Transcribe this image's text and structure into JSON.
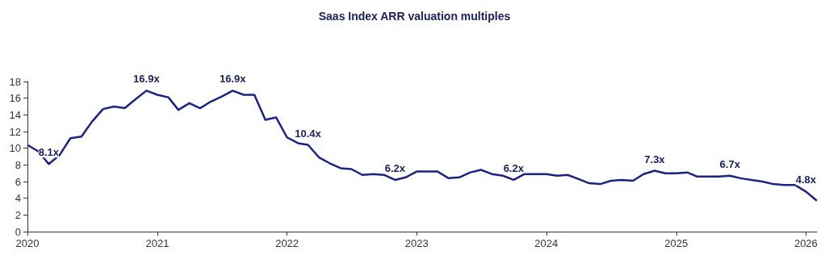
{
  "chart_data": {
    "type": "line",
    "title": "Saas Index ARR valuation multiples",
    "x": [
      "2020-01",
      "2020-02",
      "2020-03",
      "2020-04",
      "2020-05",
      "2020-06",
      "2020-07",
      "2020-08",
      "2020-09",
      "2020-10",
      "2020-11",
      "2020-12",
      "2021-01",
      "2021-02",
      "2021-03",
      "2021-04",
      "2021-05",
      "2021-06",
      "2021-07",
      "2021-08",
      "2021-09",
      "2021-10",
      "2021-11",
      "2021-12",
      "2022-01",
      "2022-02",
      "2022-03",
      "2022-04",
      "2022-05",
      "2022-06",
      "2022-07",
      "2022-08",
      "2022-09",
      "2022-10",
      "2022-11",
      "2022-12",
      "2023-01",
      "2023-02",
      "2023-03",
      "2023-04",
      "2023-05",
      "2023-06",
      "2023-07",
      "2023-08",
      "2023-09",
      "2023-10",
      "2023-11",
      "2023-12",
      "2024-01",
      "2024-02",
      "2024-03",
      "2024-04",
      "2024-05",
      "2024-06",
      "2024-07",
      "2024-08",
      "2024-09",
      "2024-10",
      "2024-11",
      "2024-12",
      "2025-01",
      "2025-02",
      "2025-03",
      "2025-04",
      "2025-05",
      "2025-06",
      "2025-07",
      "2025-08",
      "2025-09",
      "2025-10",
      "2025-11",
      "2025-12",
      "2026-01",
      "2026-02"
    ],
    "series": [
      {
        "color": "#1c2280",
        "values": [
          10.4,
          9.6,
          8.1,
          9.2,
          11.2,
          11.4,
          13.2,
          14.7,
          15.0,
          14.8,
          15.9,
          16.9,
          16.4,
          16.1,
          14.6,
          15.4,
          14.8,
          15.6,
          16.2,
          16.9,
          16.4,
          16.4,
          13.4,
          13.7,
          11.3,
          10.6,
          10.4,
          8.9,
          8.2,
          7.6,
          7.5,
          6.8,
          6.9,
          6.8,
          6.2,
          6.5,
          7.2,
          7.2,
          7.2,
          6.4,
          6.5,
          7.1,
          7.4,
          6.9,
          6.7,
          6.2,
          6.9,
          6.9,
          6.9,
          6.7,
          6.8,
          6.3,
          5.8,
          5.7,
          6.1,
          6.2,
          6.1,
          6.9,
          7.3,
          7.0,
          7.0,
          7.1,
          6.6,
          6.6,
          6.6,
          6.7,
          6.4,
          6.2,
          6.0,
          5.7,
          5.6,
          5.6,
          4.8,
          3.7
        ]
      }
    ],
    "annotations": [
      {
        "text": "8.1x",
        "x": "2020-03",
        "y": 8.1
      },
      {
        "text": "16.9x",
        "x": "2020-12",
        "y": 16.9
      },
      {
        "text": "16.9x",
        "x": "2021-08",
        "y": 16.9
      },
      {
        "text": "10.4x",
        "x": "2022-03",
        "y": 10.4
      },
      {
        "text": "6.2x",
        "x": "2022-11",
        "y": 6.2
      },
      {
        "text": "6.2x",
        "x": "2023-10",
        "y": 6.2
      },
      {
        "text": "7.3x",
        "x": "2024-11",
        "y": 7.3
      },
      {
        "text": "6.7x",
        "x": "2025-06",
        "y": 6.7
      },
      {
        "text": "4.8x",
        "x": "2026-01",
        "y": 4.8
      }
    ],
    "xlim": [
      "2020",
      "2026-02"
    ],
    "xticks": [
      "2020",
      "2021",
      "2022",
      "2023",
      "2024",
      "2025",
      "2026"
    ],
    "ylim": [
      0,
      18
    ],
    "yticks": [
      0,
      2,
      4,
      6,
      8,
      10,
      12,
      14,
      16,
      18
    ],
    "grid": false,
    "marker": "none",
    "line_style": "solid"
  }
}
